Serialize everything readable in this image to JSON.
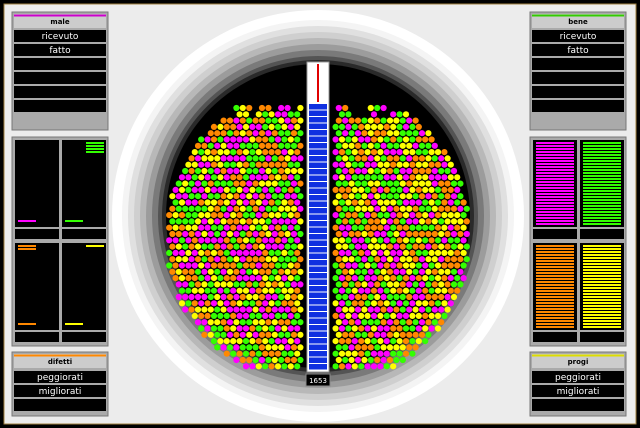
{
  "left": {
    "top_panel": {
      "title": "male",
      "rows": [
        "ricevuto",
        "fatto"
      ]
    },
    "bottom_panel": {
      "title": "difetti",
      "rows": [
        "peggiorati",
        "migliorati"
      ]
    }
  },
  "right": {
    "top_panel": {
      "title": "bene",
      "rows": [
        "ricevuto",
        "fatto"
      ]
    },
    "bottom_panel": {
      "title": "progi",
      "rows": [
        "peggiorati",
        "migliorati"
      ]
    }
  },
  "counter": "1653"
}
